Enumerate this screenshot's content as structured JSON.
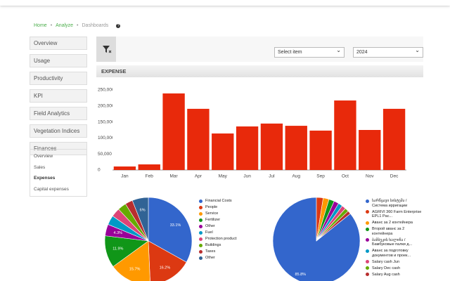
{
  "breadcrumb": [
    "Home",
    "Analyze",
    "Dashboards"
  ],
  "menu": [
    "Overview",
    "Usage",
    "Productivity",
    "KPI",
    "Field Analytics",
    "Vegetation Indices",
    "Finances"
  ],
  "submenu": [
    "Overview",
    "Sales",
    "Expenses",
    "Capital expenses"
  ],
  "filters": {
    "item": "Select item",
    "year": "2024"
  },
  "section_title": "EXPENSE",
  "chart_data": [
    {
      "type": "bar",
      "categories": [
        "Jan",
        "Feb",
        "Mar",
        "Apr",
        "May",
        "Jun",
        "Jul",
        "Aug",
        "Sep",
        "Oct",
        "Nov",
        "Dec"
      ],
      "values": [
        11000,
        17500,
        239000,
        191000,
        114000,
        136000,
        145000,
        138000,
        123000,
        217000,
        125000,
        191000
      ],
      "color": "#e8290b",
      "ylim": [
        0,
        250000
      ],
      "yticks": [
        0,
        {
          "value": 50000,
          "label": "50,000"
        },
        {
          "value": 100000,
          "label": "100,000"
        },
        {
          "value": 150000,
          "label": "150,000"
        },
        {
          "value": 200000,
          "label": "200,000"
        },
        {
          "value": 250000,
          "label": "250,000"
        }
      ]
    },
    {
      "type": "pie",
      "categories": [
        "Financial Costs",
        "People",
        "Service",
        "Fertilizer",
        "Other",
        "Fuel",
        "Protection product",
        "Buildings",
        "Taxes",
        "Other"
      ],
      "values": [
        33.1,
        16.2,
        15.7,
        11.9,
        4.3,
        3.5,
        3.3,
        3.2,
        2.8,
        6
      ],
      "value_labels": [
        "33.1%",
        "16.2%",
        "15.7%",
        "11.9%",
        "4.3%",
        null,
        null,
        null,
        null,
        "6%"
      ],
      "colors": [
        "#3366cc",
        "#dc3912",
        "#ff9900",
        "#109618",
        "#990099",
        "#0099c6",
        "#dd4477",
        "#66aa00",
        "#b82e2e",
        "#316395"
      ]
    },
    {
      "type": "pie",
      "categories": [
        "სარწყავი სისტემა / Система ирригации",
        "AGRIVI 360 Farm Enterprise EPL1 Pac...",
        "Аванс за 2 контейнера",
        "Второй аванс за 2 контейнера",
        "ბამბუკის ხალიჩა / Бамбуковые палки д...",
        "Аванс за подготовку документов и проек...",
        "Salary cash Jun",
        "Salary Dec cash",
        "Salary Aug cash"
      ],
      "values": [
        85.8,
        2.5,
        2.2,
        2,
        1.8,
        1.6,
        1.5,
        1.4,
        1.2
      ],
      "value_labels": [
        "85.8%",
        null,
        null,
        null,
        null,
        null,
        null,
        null,
        null
      ],
      "colors": [
        "#3366cc",
        "#dc3912",
        "#ff9900",
        "#109618",
        "#990099",
        "#0099c6",
        "#dd4477",
        "#66aa00",
        "#b82e2e"
      ]
    }
  ]
}
